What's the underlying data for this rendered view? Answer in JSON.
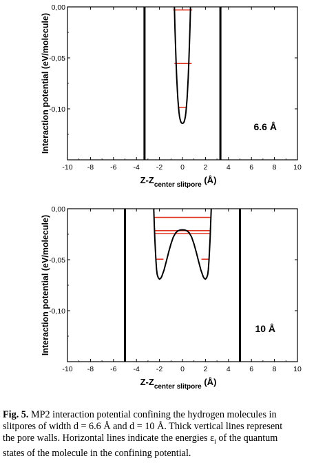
{
  "chart_data": [
    {
      "type": "line",
      "panel_label": "6.6 Å",
      "ylabel": "Interaction potential (eV/molecule)",
      "xlabel_main": "Z-Z",
      "xlabel_sub": "center slitpore",
      "xlabel_unit": "(Å)",
      "xlim": [
        -10,
        10
      ],
      "ylim": [
        -0.15,
        0.0
      ],
      "x_ticks": [
        "-10",
        "-8",
        "-6",
        "-4",
        "-2",
        "0",
        "2",
        "4",
        "6",
        "8",
        "10"
      ],
      "y_ticks": [
        "0,00",
        "-0,05",
        "-0,10"
      ],
      "y_tick_values": [
        0.0,
        -0.05,
        -0.1
      ],
      "wall_positions": [
        -3.3,
        3.3
      ],
      "series": [
        {
          "x": [
            -0.7,
            -0.65,
            -0.6,
            -0.55,
            -0.5,
            -0.45,
            -0.4,
            -0.35,
            -0.3,
            -0.25,
            -0.2,
            -0.15,
            -0.1,
            -0.05,
            0.0,
            0.05,
            0.1,
            0.15,
            0.2,
            0.25,
            0.3,
            0.35,
            0.4,
            0.45,
            0.5,
            0.55,
            0.6,
            0.65,
            0.7
          ],
          "y": [
            0.0,
            -0.0208,
            -0.0392,
            -0.0553,
            -0.069,
            -0.0806,
            -0.0901,
            -0.0977,
            -0.1035,
            -0.1077,
            -0.1107,
            -0.1125,
            -0.1136,
            -0.1141,
            -0.1143,
            -0.1141,
            -0.1136,
            -0.1125,
            -0.1107,
            -0.1077,
            -0.1035,
            -0.0977,
            -0.0901,
            -0.0806,
            -0.069,
            -0.0553,
            -0.0392,
            -0.0208,
            0.0
          ]
        }
      ],
      "energy_levels": [
        {
          "y": -0.0985,
          "x1": -0.4,
          "x2": 0.4
        },
        {
          "y": -0.0555,
          "x1": -0.7,
          "x2": 0.8
        },
        {
          "y": -0.003,
          "x1": -0.8,
          "x2": 0.85
        }
      ],
      "colors": {
        "curve": "#000000",
        "levels": "#e0301e",
        "walls": "#000000"
      }
    },
    {
      "type": "line",
      "panel_label": "10 Å",
      "ylabel": "Interaction potential (eV/molecule)",
      "xlabel_main": "Z-Z",
      "xlabel_sub": "center slitpore",
      "xlabel_unit": "(Å)",
      "xlim": [
        -10,
        10
      ],
      "ylim": [
        -0.15,
        0.0
      ],
      "x_ticks": [
        "-10",
        "-8",
        "-6",
        "-4",
        "-2",
        "0",
        "2",
        "4",
        "6",
        "8",
        "10"
      ],
      "y_ticks": [
        "0,00",
        "-0,05",
        "-0,10"
      ],
      "y_tick_values": [
        0.0,
        -0.05,
        -0.1
      ],
      "wall_positions": [
        -5.0,
        5.0
      ],
      "series": [
        {
          "x": [
            -2.5,
            -2.45,
            -2.4,
            -2.35,
            -2.3,
            -2.25,
            -2.2,
            -2.1,
            -2.0,
            -1.9,
            -1.8,
            -1.6,
            -1.4,
            -1.2,
            -1.0,
            -0.8,
            -0.6,
            -0.4,
            -0.2,
            0.0,
            0.2,
            0.4,
            0.6,
            0.8,
            1.0,
            1.2,
            1.4,
            1.6,
            1.8,
            1.9,
            2.0,
            2.1,
            2.2,
            2.25,
            2.3,
            2.35,
            2.4,
            2.45,
            2.5
          ],
          "y": [
            0.0,
            -0.016,
            -0.03,
            -0.042,
            -0.052,
            -0.0595,
            -0.0645,
            -0.0678,
            -0.069,
            -0.0684,
            -0.0665,
            -0.06,
            -0.0515,
            -0.0425,
            -0.0345,
            -0.028,
            -0.0238,
            -0.0217,
            -0.0209,
            -0.0207,
            -0.0209,
            -0.0217,
            -0.0238,
            -0.028,
            -0.0345,
            -0.0425,
            -0.0515,
            -0.06,
            -0.0665,
            -0.0684,
            -0.069,
            -0.0678,
            -0.0645,
            -0.0595,
            -0.052,
            -0.042,
            -0.03,
            -0.016,
            0.0
          ]
        }
      ],
      "energy_levels": [
        {
          "y": -0.0495,
          "x1": -2.3,
          "x2": -1.65
        },
        {
          "y": -0.0495,
          "x1": 1.65,
          "x2": 2.3
        },
        {
          "y": -0.0245,
          "x1": -2.45,
          "x2": 2.45
        },
        {
          "y": -0.0215,
          "x1": -2.45,
          "x2": 2.45
        },
        {
          "y": -0.0085,
          "x1": -2.5,
          "x2": 2.5
        }
      ],
      "colors": {
        "curve": "#000000",
        "levels": "#e0301e",
        "walls": "#000000"
      }
    }
  ],
  "caption": {
    "label": "Fig. 5.",
    "line1": " MP2 interaction potential confining the hydrogen molecules in",
    "line2": "slitpores of width d = 6.6 Å and d = 10 Å. Thick vertical lines represent",
    "line3": "the pore walls. Horizontal lines indicate the energies ε",
    "line3_sub": "i",
    "line3_end": " of the quantum",
    "line4": "states of the molecule in the confining potential."
  }
}
